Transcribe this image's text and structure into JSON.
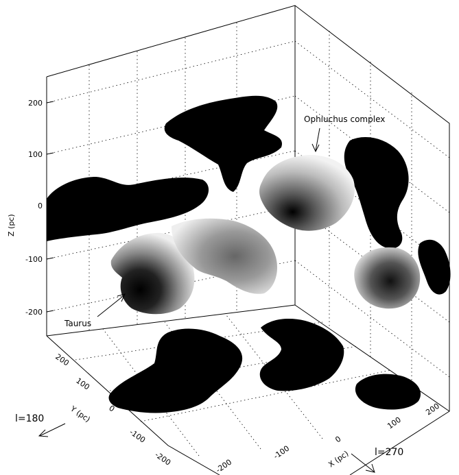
{
  "chart_data": {
    "type": "3d-surface",
    "axes": {
      "x": {
        "label": "X (pc)",
        "ticks": [
          "-200",
          "-100",
          "0",
          "100",
          "200"
        ]
      },
      "y": {
        "label": "Y (pc)",
        "ticks": [
          "-200",
          "-100",
          "0",
          "100",
          "200"
        ]
      },
      "z": {
        "label": "Z (pc)",
        "ticks": [
          "-200",
          "-100",
          "0",
          "100",
          "200"
        ]
      }
    },
    "annotations": {
      "ophiuchus": "Ophiuchus complex",
      "taurus": "Taurus"
    },
    "directions": {
      "l180": "l=180",
      "l270": "l=270"
    },
    "grid": true,
    "colors": {
      "cloud": "#000000",
      "background": "#ffffff"
    }
  }
}
